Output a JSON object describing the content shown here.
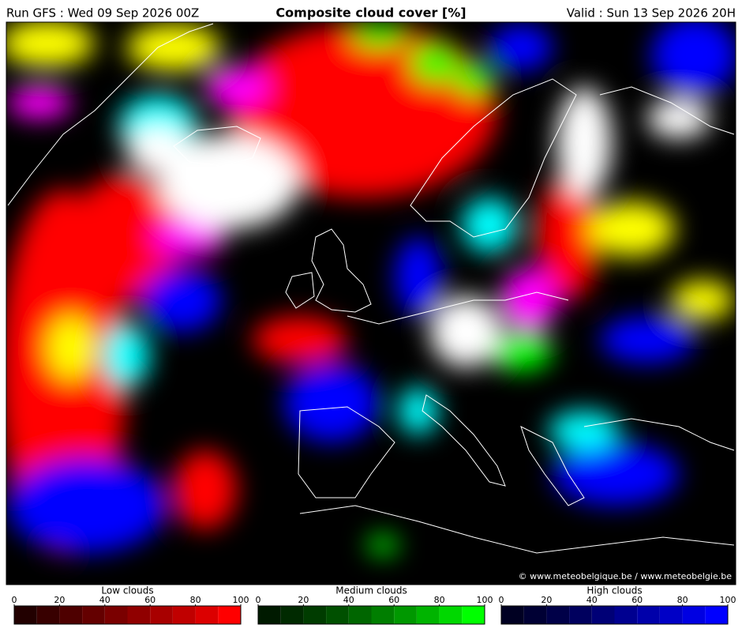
{
  "header": {
    "run": "Run GFS : Wed 09 Sep 2026 00Z",
    "title": "Composite cloud cover [%]",
    "valid": "Valid : Sun 13 Sep 2026 20H"
  },
  "map": {
    "credit": "© www.meteobelgique.be / www.meteobelgie.be"
  },
  "legends": [
    {
      "title": "Low clouds",
      "range": [
        0,
        100
      ],
      "ticks": [
        0,
        20,
        40,
        60,
        80,
        100
      ],
      "colors": [
        "#220000",
        "#380000",
        "#4e0000",
        "#640000",
        "#7a0000",
        "#900000",
        "#a80000",
        "#c00000",
        "#dc0000",
        "#ff0000"
      ]
    },
    {
      "title": "Medium clouds",
      "range": [
        0,
        100
      ],
      "ticks": [
        0,
        20,
        40,
        60,
        80,
        100
      ],
      "colors": [
        "#001a00",
        "#002a00",
        "#003c00",
        "#005000",
        "#006600",
        "#007e00",
        "#009800",
        "#00b400",
        "#00d800",
        "#00ff00"
      ]
    },
    {
      "title": "High clouds",
      "range": [
        0,
        100
      ],
      "ticks": [
        0,
        20,
        40,
        60,
        80,
        100
      ],
      "colors": [
        "#000022",
        "#000034",
        "#000048",
        "#00005e",
        "#000076",
        "#000090",
        "#0000aa",
        "#0000c6",
        "#0000e2",
        "#0000ff"
      ]
    }
  ]
}
